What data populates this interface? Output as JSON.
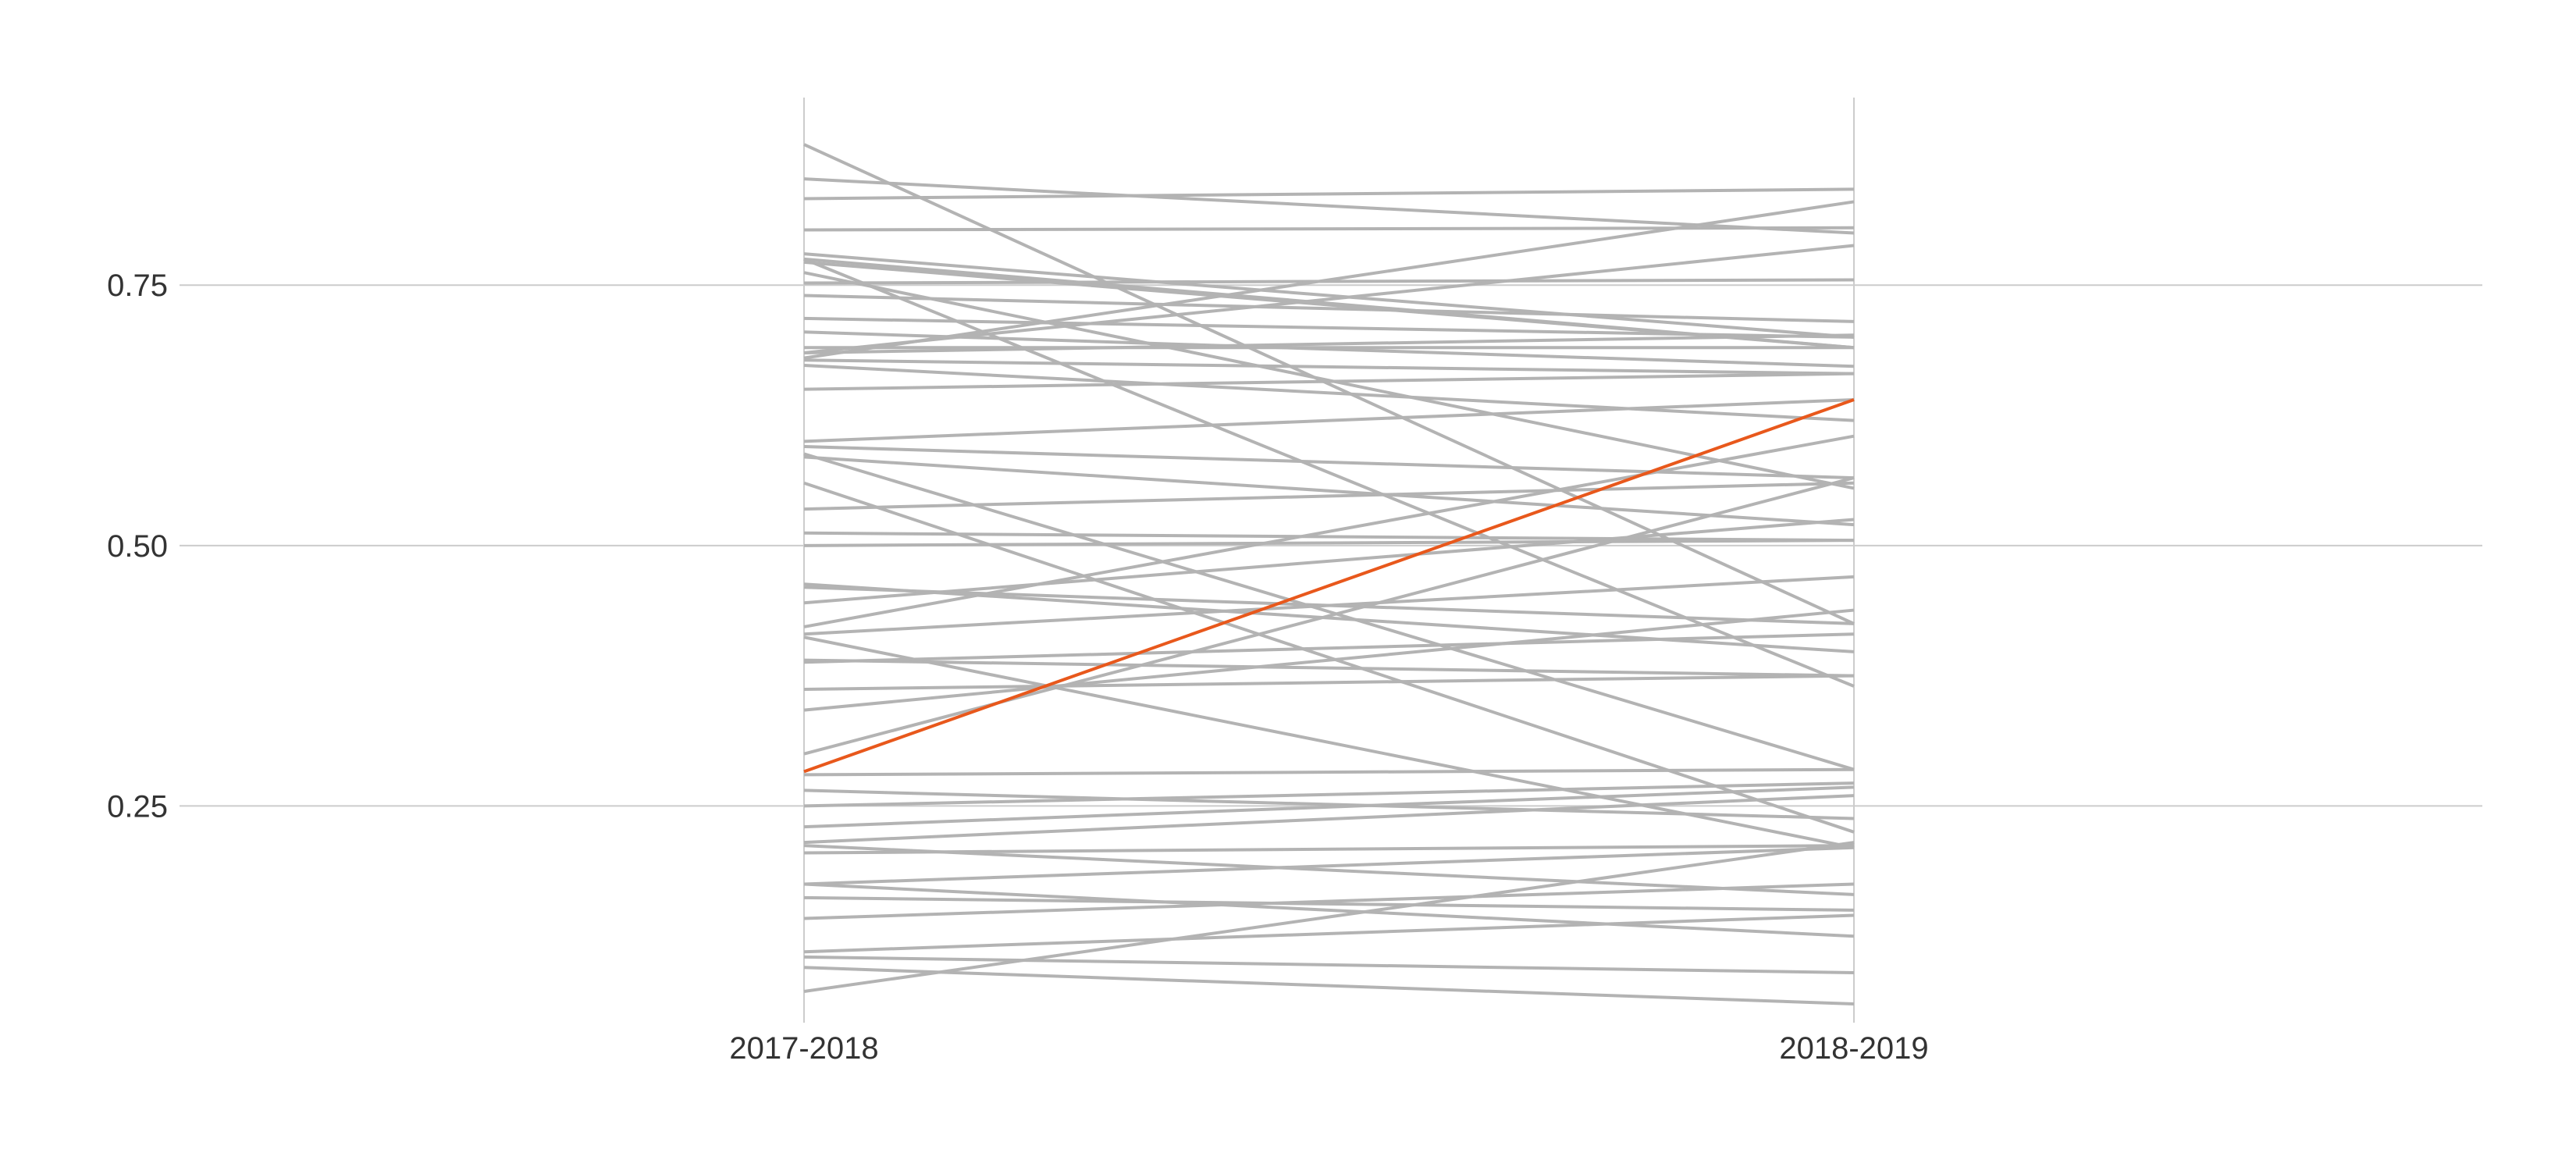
{
  "chart_data": {
    "type": "line",
    "subtype": "slopegraph",
    "title": "",
    "xlabel": "",
    "ylabel": "",
    "categories": [
      "2017-2018",
      "2018-2019"
    ],
    "ylim": [
      0.042,
      0.93
    ],
    "yticks": [
      0.25,
      0.5,
      0.75
    ],
    "ytick_labels": [
      "0.25",
      "0.50",
      "0.75"
    ],
    "grid": "horizontal",
    "legend": "none",
    "colors": {
      "default_line": "#b3b3b3",
      "highlight_line": "#e8581c",
      "grid": "#cccccc",
      "text": "#333333"
    },
    "series": [
      {
        "values": [
          0.885,
          0.425
        ]
      },
      {
        "values": [
          0.852,
          0.8
        ]
      },
      {
        "values": [
          0.833,
          0.842
        ]
      },
      {
        "values": [
          0.803,
          0.805
        ]
      },
      {
        "values": [
          0.78,
          0.7
        ]
      },
      {
        "values": [
          0.775,
          0.69
        ]
      },
      {
        "values": [
          0.775,
          0.365
        ]
      },
      {
        "values": [
          0.772,
          0.69
        ]
      },
      {
        "values": [
          0.762,
          0.555
        ]
      },
      {
        "values": [
          0.752,
          0.755
        ]
      },
      {
        "values": [
          0.74,
          0.715
        ]
      },
      {
        "values": [
          0.718,
          0.7
        ]
      },
      {
        "values": [
          0.705,
          0.672
        ]
      },
      {
        "values": [
          0.69,
          0.69
        ]
      },
      {
        "values": [
          0.685,
          0.702
        ]
      },
      {
        "values": [
          0.685,
          0.788
        ]
      },
      {
        "values": [
          0.68,
          0.83
        ]
      },
      {
        "values": [
          0.678,
          0.665
        ]
      },
      {
        "values": [
          0.673,
          0.62
        ]
      },
      {
        "values": [
          0.65,
          0.665
        ]
      },
      {
        "values": [
          0.6,
          0.64
        ]
      },
      {
        "values": [
          0.595,
          0.565
        ]
      },
      {
        "values": [
          0.588,
          0.285
        ]
      },
      {
        "values": [
          0.585,
          0.52
        ]
      },
      {
        "values": [
          0.56,
          0.225
        ]
      },
      {
        "values": [
          0.535,
          0.56
        ]
      },
      {
        "values": [
          0.512,
          0.505
        ]
      },
      {
        "values": [
          0.5,
          0.505
        ]
      },
      {
        "values": [
          0.463,
          0.398
        ]
      },
      {
        "values": [
          0.46,
          0.425
        ]
      },
      {
        "values": [
          0.445,
          0.525
        ]
      },
      {
        "values": [
          0.422,
          0.605
        ]
      },
      {
        "values": [
          0.415,
          0.47
        ]
      },
      {
        "values": [
          0.412,
          0.21
        ]
      },
      {
        "values": [
          0.39,
          0.375
        ]
      },
      {
        "values": [
          0.388,
          0.415
        ]
      },
      {
        "values": [
          0.362,
          0.375
        ]
      },
      {
        "values": [
          0.342,
          0.438
        ]
      },
      {
        "values": [
          0.3,
          0.565
        ]
      },
      {
        "values": [
          0.283,
          0.64
        ],
        "highlight": true
      },
      {
        "values": [
          0.28,
          0.285
        ]
      },
      {
        "values": [
          0.265,
          0.238
        ]
      },
      {
        "values": [
          0.25,
          0.272
        ]
      },
      {
        "values": [
          0.23,
          0.268
        ]
      },
      {
        "values": [
          0.215,
          0.26
        ]
      },
      {
        "values": [
          0.212,
          0.165
        ]
      },
      {
        "values": [
          0.205,
          0.212
        ]
      },
      {
        "values": [
          0.175,
          0.125
        ]
      },
      {
        "values": [
          0.175,
          0.21
        ]
      },
      {
        "values": [
          0.162,
          0.15
        ]
      },
      {
        "values": [
          0.142,
          0.175
        ]
      },
      {
        "values": [
          0.11,
          0.145
        ]
      },
      {
        "values": [
          0.105,
          0.09
        ]
      },
      {
        "values": [
          0.095,
          0.06
        ]
      },
      {
        "values": [
          0.072,
          0.215
        ]
      }
    ]
  }
}
